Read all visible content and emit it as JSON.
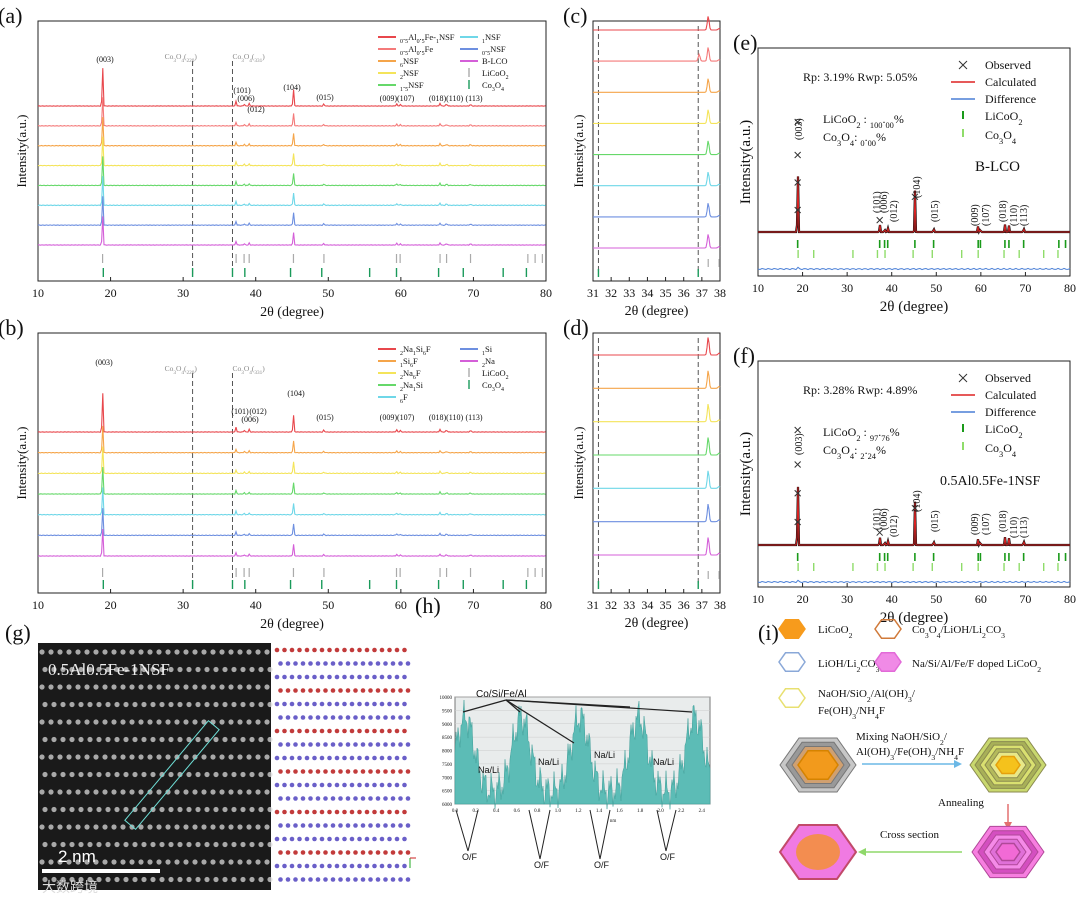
{
  "panels": {
    "a": {
      "label": "(a)",
      "ylabel": "Intensity(a.u.)",
      "xlabel": "2θ (degree)",
      "xlim": [
        10,
        80
      ],
      "xticks": [
        10,
        20,
        30,
        40,
        50,
        60,
        70,
        80
      ],
      "legend": [
        {
          "name": "0.5Al0.5Fe-1NSF",
          "color": "#e8474c",
          "style": "line"
        },
        {
          "name": "1NSF",
          "color": "#6fd7e8",
          "style": "line"
        },
        {
          "name": "0.5Al0.5Fe",
          "color": "#f47a7a",
          "style": "line"
        },
        {
          "name": "0.5NSF",
          "color": "#6d8fe0",
          "style": "line"
        },
        {
          "name": "6NSF",
          "color": "#f5a54a",
          "style": "line"
        },
        {
          "name": "B-LCO",
          "color": "#d45fd8",
          "style": "line"
        },
        {
          "name": "2NSF",
          "color": "#f4e45a",
          "style": "line"
        },
        {
          "name": "LiCoO2",
          "color": "#aaaaaa",
          "style": "tick"
        },
        {
          "name": "1.5NSF",
          "color": "#66d86a",
          "style": "line"
        },
        {
          "name": "Co3O4",
          "color": "#1a9a5a",
          "style": "tick"
        }
      ],
      "peak_labels": [
        "(003)",
        "(101)",
        "(006)",
        "(012)",
        "(104)",
        "(015)",
        "(009)(107)",
        "(018)(110)",
        "(113)"
      ],
      "dashed_labels": [
        "Co3O4(220)",
        "Co3O4(331)"
      ]
    },
    "b": {
      "label": "(b)",
      "ylabel": "Intensity(a.u.)",
      "xlabel": "2θ (degree)",
      "legend": [
        {
          "name": "2Na1Si6F",
          "color": "#e8474c",
          "style": "line"
        },
        {
          "name": "1Si",
          "color": "#6d8fe0",
          "style": "line"
        },
        {
          "name": "1Si6F",
          "color": "#f5a54a",
          "style": "line"
        },
        {
          "name": "2Na",
          "color": "#d45fd8",
          "style": "line"
        },
        {
          "name": "2Na6F",
          "color": "#f4e45a",
          "style": "line"
        },
        {
          "name": "LiCoO2",
          "color": "#aaaaaa",
          "style": "tick"
        },
        {
          "name": "2Na1Si",
          "color": "#66d86a",
          "style": "line"
        },
        {
          "name": "Co3O4",
          "color": "#1a9a5a",
          "style": "tick"
        },
        {
          "name": "6F",
          "color": "#6fd7e8",
          "style": "line"
        }
      ],
      "peak_labels": [
        "(003)",
        "(101)",
        "(012)",
        "(006)",
        "(104)",
        "(015)",
        "(009)(107)",
        "(018)(110)",
        "(113)"
      ],
      "dashed_labels": [
        "Co3O4(220)",
        "Co3O4(331)"
      ]
    },
    "c": {
      "label": "(c)",
      "ylabel": "Intensity(a.u.)",
      "xlabel": "2θ (degree)",
      "xticks": [
        31,
        32,
        33,
        34,
        35,
        36,
        37,
        38
      ]
    },
    "d": {
      "label": "(d)",
      "ylabel": "Intensity(a.u.)",
      "xlabel": "2θ (degree)",
      "xticks": [
        31,
        32,
        33,
        34,
        35,
        36,
        37,
        38
      ]
    },
    "e": {
      "label": "(e)",
      "ylabel": "Intensity(a.u.)",
      "xlabel": "2θ (degree)",
      "rp": "Rp: 3.19%  Rwp: 5.05%",
      "phase1": "LiCoO2 : 100.00%",
      "phase2": "Co3O4: 0.00%",
      "sample": "B-LCO",
      "legend": [
        "Observed",
        "Calculated",
        "Difference",
        "LiCoO2",
        "Co3O4"
      ]
    },
    "f": {
      "label": "(f)",
      "ylabel": "Intensity(a.u.)",
      "xlabel": "2θ (degree)",
      "rp": "Rp: 3.28%  Rwp: 4.89%",
      "phase1": "LiCoO2 : 97.76%",
      "phase2": "Co3O4: 2.24%",
      "sample": "0.5Al0.5Fe-1NSF",
      "legend": [
        "Observed",
        "Calculated",
        "Difference",
        "LiCoO2",
        "Co3O4"
      ]
    },
    "g": {
      "label": "(g)",
      "sample": "0.5Al0.5Fe-1NSF",
      "scale": "2 nm"
    },
    "h": {
      "label": "(h)",
      "top_label": "Co/Si/Fe/Al",
      "mid_label": "Na/Li",
      "bottom_label": "O/F",
      "yticks": [
        "10000",
        "9500",
        "9000",
        "8500",
        "8000",
        "7500",
        "7000",
        "6500",
        "6000"
      ],
      "xticks": [
        "0.0",
        "0.2",
        "0.4",
        "0.6",
        "0.8",
        "1.0",
        "1.2",
        "1.4",
        "1.6",
        "1.8",
        "2.0",
        "2.2",
        "2.4"
      ],
      "xunit": "nm"
    },
    "i": {
      "label": "(i)",
      "legend": [
        "LiCoO2",
        "Co3O4/LiOH/Li2CO3",
        "LiOH/Li2CO3",
        "Na/Si/Al/Fe/F doped LiCoO2",
        "NaOH/SiO2/Al(OH)3/",
        "Fe(OH)3/NH4F"
      ],
      "step1": "Mixing NaOH/SiO2/",
      "step1b": "Al(OH)3/Fe(OH)3/NH4F",
      "step2": "Annealing",
      "step3": "Cross section"
    }
  },
  "watermark": "大数跨境"
}
